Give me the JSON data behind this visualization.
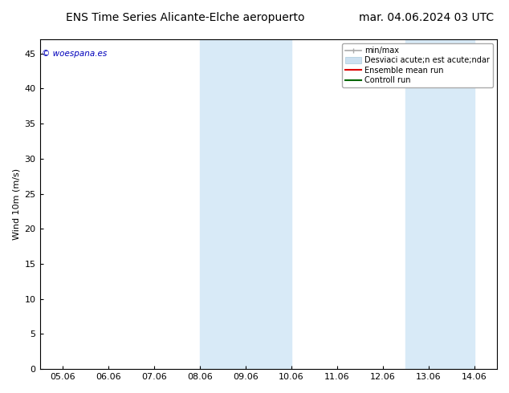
{
  "title_left": "ENS Time Series Alicante-Elche aeropuerto",
  "title_right": "mar. 04.06.2024 03 UTC",
  "ylabel": "Wind 10m (m/s)",
  "watermark": "© woespana.es",
  "ylim": [
    0,
    47
  ],
  "yticks": [
    0,
    5,
    10,
    15,
    20,
    25,
    30,
    35,
    40,
    45
  ],
  "xtick_labels": [
    "05.06",
    "06.06",
    "07.06",
    "08.06",
    "09.06",
    "10.06",
    "11.06",
    "12.06",
    "13.06",
    "14.06"
  ],
  "xlim": [
    -0.5,
    9.5
  ],
  "background_color": "#ffffff",
  "plot_bg_color": "#ffffff",
  "shaded_regions": [
    {
      "xmin": 3.0,
      "xmax": 5.0,
      "color": "#d8eaf7"
    },
    {
      "xmin": 7.5,
      "xmax": 9.0,
      "color": "#d8eaf7"
    }
  ],
  "legend_entries": [
    {
      "label": "min/max",
      "color": "#aaaaaa",
      "lw": 1.2,
      "type": "line_cap"
    },
    {
      "label": "Desviaci acute;n est acute;ndar",
      "color": "#cce0f0",
      "lw": 8,
      "type": "patch"
    },
    {
      "label": "Ensemble mean run",
      "color": "#dd0000",
      "lw": 1.5,
      "type": "line"
    },
    {
      "label": "Controll run",
      "color": "#006600",
      "lw": 1.5,
      "type": "line"
    }
  ],
  "title_fontsize": 10,
  "axis_fontsize": 8,
  "tick_fontsize": 8,
  "watermark_color": "#0000bb",
  "grid_color": "#dddddd",
  "border_color": "#000000",
  "title_font": "DejaVu Sans Condensed"
}
